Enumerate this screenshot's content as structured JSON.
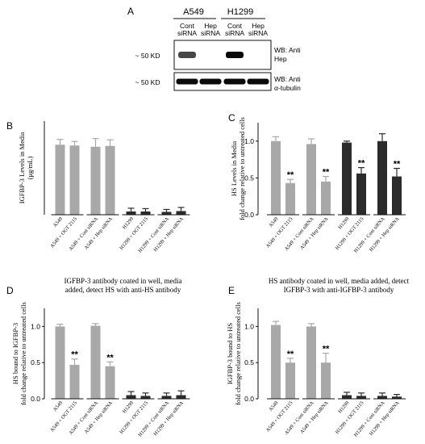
{
  "blot": {
    "panel_letter": "A",
    "cell_lines": [
      "A549",
      "H1299"
    ],
    "lanes": [
      {
        "line1": "Cont",
        "line2": "siRNA"
      },
      {
        "line1": "Hep",
        "line2": "siRNA"
      },
      {
        "line1": "Cont",
        "line2": "siRNA"
      },
      {
        "line1": "Hep",
        "line2": "siRNA"
      }
    ],
    "rows": [
      {
        "marker": "~ 50 KD",
        "label1": "WB: Anti",
        "label2": "Hep",
        "band_intensity": [
          0.75,
          0.0,
          1.0,
          0.0
        ]
      },
      {
        "marker": "~ 50 KD",
        "label1": "WB: Anti",
        "label2": "α-tubulin",
        "band_intensity": [
          1.0,
          1.0,
          1.0,
          1.0
        ]
      }
    ]
  },
  "chart_data": [
    {
      "panel": "B",
      "type": "bar",
      "title": "",
      "ylabel": "IGFBP-3 Levels in Media (μg/mL)",
      "ylabel_lines": [
        "IGFBP-3 Levels in Media",
        "(μg/mL)"
      ],
      "xlabel": "",
      "ylim": [
        0,
        2.3
      ],
      "yticks": [],
      "categories": [
        "A549",
        "A549 + OGT 2115",
        "A549 + Cont siRNA",
        "A549 + Hep siRNA",
        "H1299",
        "H1299 + OGT 2115",
        "H1299 + Cont siRNA",
        "H1299 + Hep siRNA"
      ],
      "group_sizes": [
        2,
        2,
        2,
        2
      ],
      "values": [
        1.72,
        1.7,
        1.67,
        1.69,
        0.08,
        0.08,
        0.07,
        0.09
      ],
      "errors": [
        0.13,
        0.1,
        0.2,
        0.15,
        0.08,
        0.07,
        0.06,
        0.09
      ],
      "colors": [
        "#a8a8a8",
        "#a8a8a8",
        "#a8a8a8",
        "#a8a8a8",
        "#2b2b2b",
        "#2b2b2b",
        "#2b2b2b",
        "#2b2b2b"
      ],
      "significance": [
        "",
        "",
        "",
        "",
        "",
        "",
        "",
        ""
      ]
    },
    {
      "panel": "C",
      "type": "bar",
      "title": "",
      "ylabel": "HS Levels in Media fold change relative to untreated cells",
      "ylabel_lines": [
        "HS Levels in Media",
        "fold change relative to untreated cells"
      ],
      "xlabel": "",
      "ylim": [
        0,
        1.25
      ],
      "yticks": [
        "0.0",
        "0.5",
        "1.0"
      ],
      "ytick_values": [
        0,
        0.5,
        1.0
      ],
      "categories": [
        "A549",
        "A549 + OGT 2115",
        "A549 + Cont siRNA",
        "A549 + Hep siRNA",
        "H1299",
        "H1299 + OGT 2115",
        "H1299 + Cont siRNA",
        "H1299 + Hep siRNA"
      ],
      "group_sizes": [
        2,
        2,
        2,
        2
      ],
      "values": [
        1.0,
        0.43,
        0.96,
        0.45,
        0.98,
        0.56,
        1.0,
        0.52
      ],
      "errors": [
        0.06,
        0.05,
        0.07,
        0.07,
        0.02,
        0.08,
        0.1,
        0.11
      ],
      "colors": [
        "#a8a8a8",
        "#a8a8a8",
        "#a8a8a8",
        "#a8a8a8",
        "#2b2b2b",
        "#2b2b2b",
        "#2b2b2b",
        "#2b2b2b"
      ],
      "significance": [
        "",
        "**",
        "",
        "**",
        "",
        "**",
        "",
        "**"
      ]
    },
    {
      "panel": "D",
      "type": "bar",
      "title": "IGFBP-3 antibody coated in well, media added, detect HS with anti-HS antibody",
      "title_lines": [
        "IGFBP-3 antibody coated in well, media",
        "added, detect HS with anti-HS antibody"
      ],
      "ylabel": "HS bound to IGFBP-3 fold change relative to untreated cells",
      "ylabel_lines": [
        "HS bound to IGFBP-3",
        "fold change relative to untreated cells"
      ],
      "xlabel": "",
      "ylim": [
        0,
        1.25
      ],
      "yticks": [
        "0.0",
        "0.5",
        "1.0"
      ],
      "ytick_values": [
        0,
        0.5,
        1.0
      ],
      "categories": [
        "A549",
        "A549 + OGT 2115",
        "A549 + Cont siRNA",
        "A549 + Hep siRNA",
        "H1299",
        "H1299 + OGT 2115",
        "H1299 + Cont siRNA",
        "H1299 + Hep siRNA"
      ],
      "group_sizes": [
        2,
        2,
        2,
        2
      ],
      "values": [
        1.0,
        0.47,
        1.01,
        0.45,
        0.05,
        0.04,
        0.04,
        0.05
      ],
      "errors": [
        0.03,
        0.08,
        0.03,
        0.06,
        0.05,
        0.04,
        0.04,
        0.06
      ],
      "colors": [
        "#a8a8a8",
        "#a8a8a8",
        "#a8a8a8",
        "#a8a8a8",
        "#2b2b2b",
        "#2b2b2b",
        "#2b2b2b",
        "#2b2b2b"
      ],
      "significance": [
        "",
        "**",
        "",
        "**",
        "",
        "",
        "",
        ""
      ]
    },
    {
      "panel": "E",
      "type": "bar",
      "title": "HS antibody coated in well, media added, detect IGFBP-3 with anti-IGFBP-3 antibody",
      "title_lines": [
        "HS antibody coated in well, media added, detect",
        "IGFBP-3 with anti-IGFBP-3 antibody"
      ],
      "ylabel": "IGFBP-3 bound to HS fold change relative to untreated cells",
      "ylabel_lines": [
        "IGFBP-3 bound to HS",
        "fold change relative to untreated cells"
      ],
      "xlabel": "",
      "ylim": [
        0,
        1.25
      ],
      "yticks": [
        "0.0",
        "0.5",
        "1.0"
      ],
      "ytick_values": [
        0,
        0.5,
        1.0
      ],
      "categories": [
        "A549",
        "A549 + OGT 2115",
        "A549 + Cont siRNA",
        "A549 + Hep siRNA",
        "H1299",
        "H1299 + OGT 2115",
        "H1299 + Cont siRNA",
        "H1299 + Hep siRNA"
      ],
      "group_sizes": [
        2,
        2,
        2,
        2
      ],
      "values": [
        1.02,
        0.5,
        1.0,
        0.5,
        0.05,
        0.04,
        0.04,
        0.03
      ],
      "errors": [
        0.05,
        0.06,
        0.04,
        0.13,
        0.04,
        0.04,
        0.04,
        0.03
      ],
      "colors": [
        "#a8a8a8",
        "#a8a8a8",
        "#a8a8a8",
        "#a8a8a8",
        "#2b2b2b",
        "#2b2b2b",
        "#2b2b2b",
        "#2b2b2b"
      ],
      "significance": [
        "",
        "**",
        "",
        "**",
        "",
        "",
        "",
        ""
      ]
    }
  ]
}
